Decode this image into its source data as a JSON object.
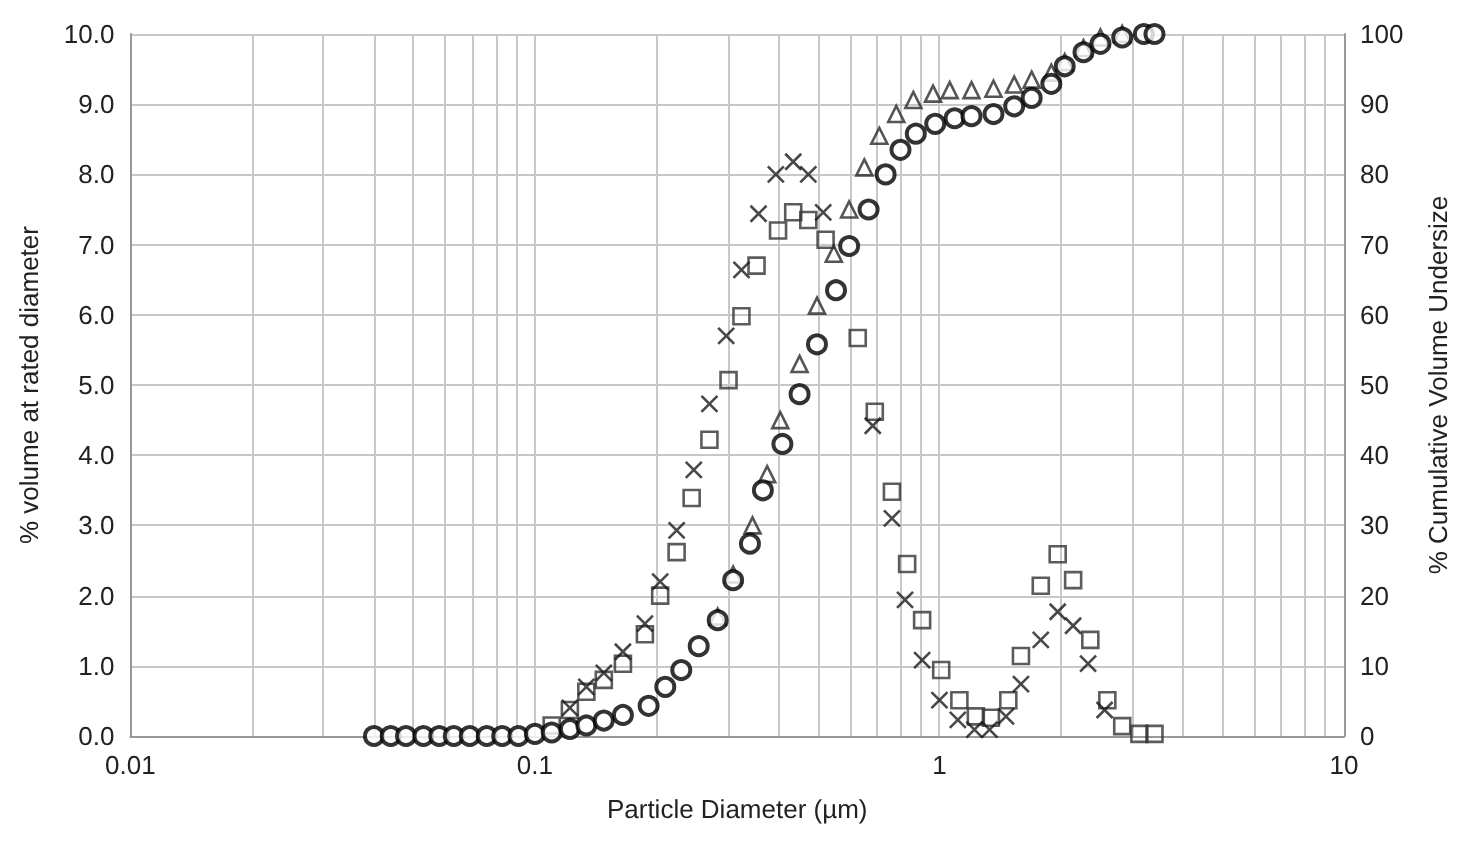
{
  "chart_data": {
    "type": "scatter",
    "xlabel": "Particle Diameter (µm)",
    "ylabel": "% volume at rated diameter",
    "y2label": "% Cumulative Volume Undersize",
    "log": "x",
    "grid": true,
    "xlim": [
      0.01,
      10
    ],
    "xticks": [
      {
        "value": 0.01,
        "label": "0.01"
      },
      {
        "value": 0.02,
        "label": null
      },
      {
        "value": 0.03,
        "label": null
      },
      {
        "value": 0.04,
        "label": null
      },
      {
        "value": 0.05,
        "label": null
      },
      {
        "value": 0.06,
        "label": null
      },
      {
        "value": 0.07,
        "label": null
      },
      {
        "value": 0.08,
        "label": null
      },
      {
        "value": 0.09,
        "label": null
      },
      {
        "value": 0.1,
        "label": "0.1"
      },
      {
        "value": 0.2,
        "label": null
      },
      {
        "value": 0.3,
        "label": null
      },
      {
        "value": 0.4,
        "label": null
      },
      {
        "value": 0.5,
        "label": null
      },
      {
        "value": 0.6,
        "label": null
      },
      {
        "value": 0.7,
        "label": null
      },
      {
        "value": 0.8,
        "label": null
      },
      {
        "value": 0.9,
        "label": null
      },
      1,
      {
        "value": 2,
        "label": null
      },
      {
        "value": 3,
        "label": null
      },
      {
        "value": 4,
        "label": null
      },
      {
        "value": 5,
        "label": null
      },
      {
        "value": 6,
        "label": null
      },
      {
        "value": 7,
        "label": null
      },
      {
        "value": 8,
        "label": null
      },
      {
        "value": 9,
        "label": null
      },
      10
    ],
    "ylim": [
      0,
      10
    ],
    "yticks": [
      {
        "value": 0,
        "label": "0.0"
      },
      {
        "value": 1,
        "label": "1.0"
      },
      {
        "value": 2,
        "label": "2.0"
      },
      {
        "value": 3,
        "label": "3.0"
      },
      {
        "value": 4,
        "label": "4.0"
      },
      {
        "value": 5,
        "label": "5.0"
      },
      {
        "value": 6,
        "label": "6.0"
      },
      {
        "value": 7,
        "label": "7.0"
      },
      {
        "value": 8,
        "label": "8.0"
      },
      {
        "value": 9,
        "label": "9.0"
      },
      {
        "value": 10,
        "label": "10.0"
      }
    ],
    "y2lim": [
      0,
      100
    ],
    "y2ticks": [
      0,
      10,
      20,
      30,
      40,
      50,
      60,
      70,
      80,
      90,
      100
    ],
    "series": [
      {
        "marker": "square",
        "color": "#333333",
        "x": [
          0.11,
          0.122,
          0.134,
          0.148,
          0.165,
          0.187,
          0.204,
          0.224,
          0.244,
          0.27,
          0.301,
          0.324,
          0.353,
          0.399,
          0.435,
          0.474,
          0.523,
          0.628,
          0.692,
          0.763,
          0.832,
          0.906,
          1.01,
          1.12,
          1.23,
          1.34,
          1.48,
          1.59,
          1.78,
          1.96,
          2.14,
          2.36,
          2.6,
          2.83,
          3.12,
          3.4
        ],
        "values": [
          0.15,
          0.37,
          0.63,
          0.8,
          1.03,
          1.45,
          2.0,
          2.62,
          3.39,
          4.22,
          5.07,
          5.98,
          6.7,
          7.2,
          7.46,
          7.35,
          7.07,
          5.67,
          4.62,
          3.48,
          2.45,
          1.65,
          0.94,
          0.51,
          0.28,
          0.26,
          0.51,
          1.14,
          2.14,
          2.59,
          2.22,
          1.37,
          0.51,
          0.14,
          0.03,
          0.03
        ]
      },
      {
        "marker": "cross",
        "color": "#1a1a1a",
        "x": [
          0.122,
          0.134,
          0.148,
          0.165,
          0.187,
          0.204,
          0.224,
          0.247,
          0.27,
          0.297,
          0.324,
          0.357,
          0.394,
          0.435,
          0.474,
          0.516,
          0.684,
          0.763,
          0.822,
          0.906,
          1.0,
          1.11,
          1.22,
          1.33,
          1.46,
          1.59,
          1.78,
          1.96,
          2.14,
          2.33,
          2.56
        ],
        "values": [
          0.4,
          0.7,
          0.9,
          1.2,
          1.6,
          2.2,
          2.93,
          3.79,
          4.73,
          5.7,
          6.64,
          7.44,
          8.0,
          8.18,
          8.0,
          7.46,
          4.42,
          3.1,
          1.94,
          1.08,
          0.51,
          0.23,
          0.09,
          0.09,
          0.28,
          0.74,
          1.37,
          1.77,
          1.57,
          1.03,
          0.37
        ]
      },
      {
        "marker": "triangle",
        "color": "#2b2b2b",
        "axis": "y2",
        "x": [
          0.283,
          0.309,
          0.345,
          0.375,
          0.404,
          0.451,
          0.498,
          0.548,
          0.598,
          0.652,
          0.71,
          0.782,
          0.862,
          0.964,
          1.06,
          1.2,
          1.36,
          1.53,
          1.69,
          1.89,
          2.04,
          2.27,
          2.5,
          2.83
        ],
        "values": [
          17,
          23,
          30,
          37.3,
          45,
          53,
          61.3,
          68.7,
          75,
          81,
          85.5,
          88.6,
          90.6,
          91.5,
          92,
          92,
          92.2,
          92.8,
          93.5,
          94.5,
          96,
          98,
          99.5,
          100
        ]
      },
      {
        "marker": "circle",
        "color": "#000000",
        "axis": "y2",
        "x": [
          0.04,
          0.044,
          0.048,
          0.053,
          0.058,
          0.063,
          0.069,
          0.076,
          0.083,
          0.091,
          0.1,
          0.11,
          0.122,
          0.134,
          0.148,
          0.165,
          0.191,
          0.21,
          0.23,
          0.254,
          0.283,
          0.309,
          0.34,
          0.366,
          0.409,
          0.451,
          0.498,
          0.555,
          0.598,
          0.668,
          0.736,
          0.801,
          0.874,
          0.976,
          1.09,
          1.2,
          1.36,
          1.53,
          1.69,
          1.89,
          2.04,
          2.27,
          2.5,
          2.83,
          3.2,
          3.4
        ],
        "values": [
          0,
          0,
          0,
          0,
          0,
          0,
          0,
          0,
          0,
          0,
          0.3,
          0.5,
          1,
          1.5,
          2.2,
          3,
          4.3,
          7,
          9.4,
          12.8,
          16.5,
          22.2,
          27.4,
          35,
          41.6,
          48.7,
          55.8,
          63.5,
          69.8,
          75,
          80,
          83.5,
          85.8,
          87.2,
          88,
          88.3,
          88.6,
          89.7,
          90.9,
          92.9,
          95.4,
          97.4,
          98.6,
          99.5,
          100,
          100
        ]
      }
    ]
  }
}
